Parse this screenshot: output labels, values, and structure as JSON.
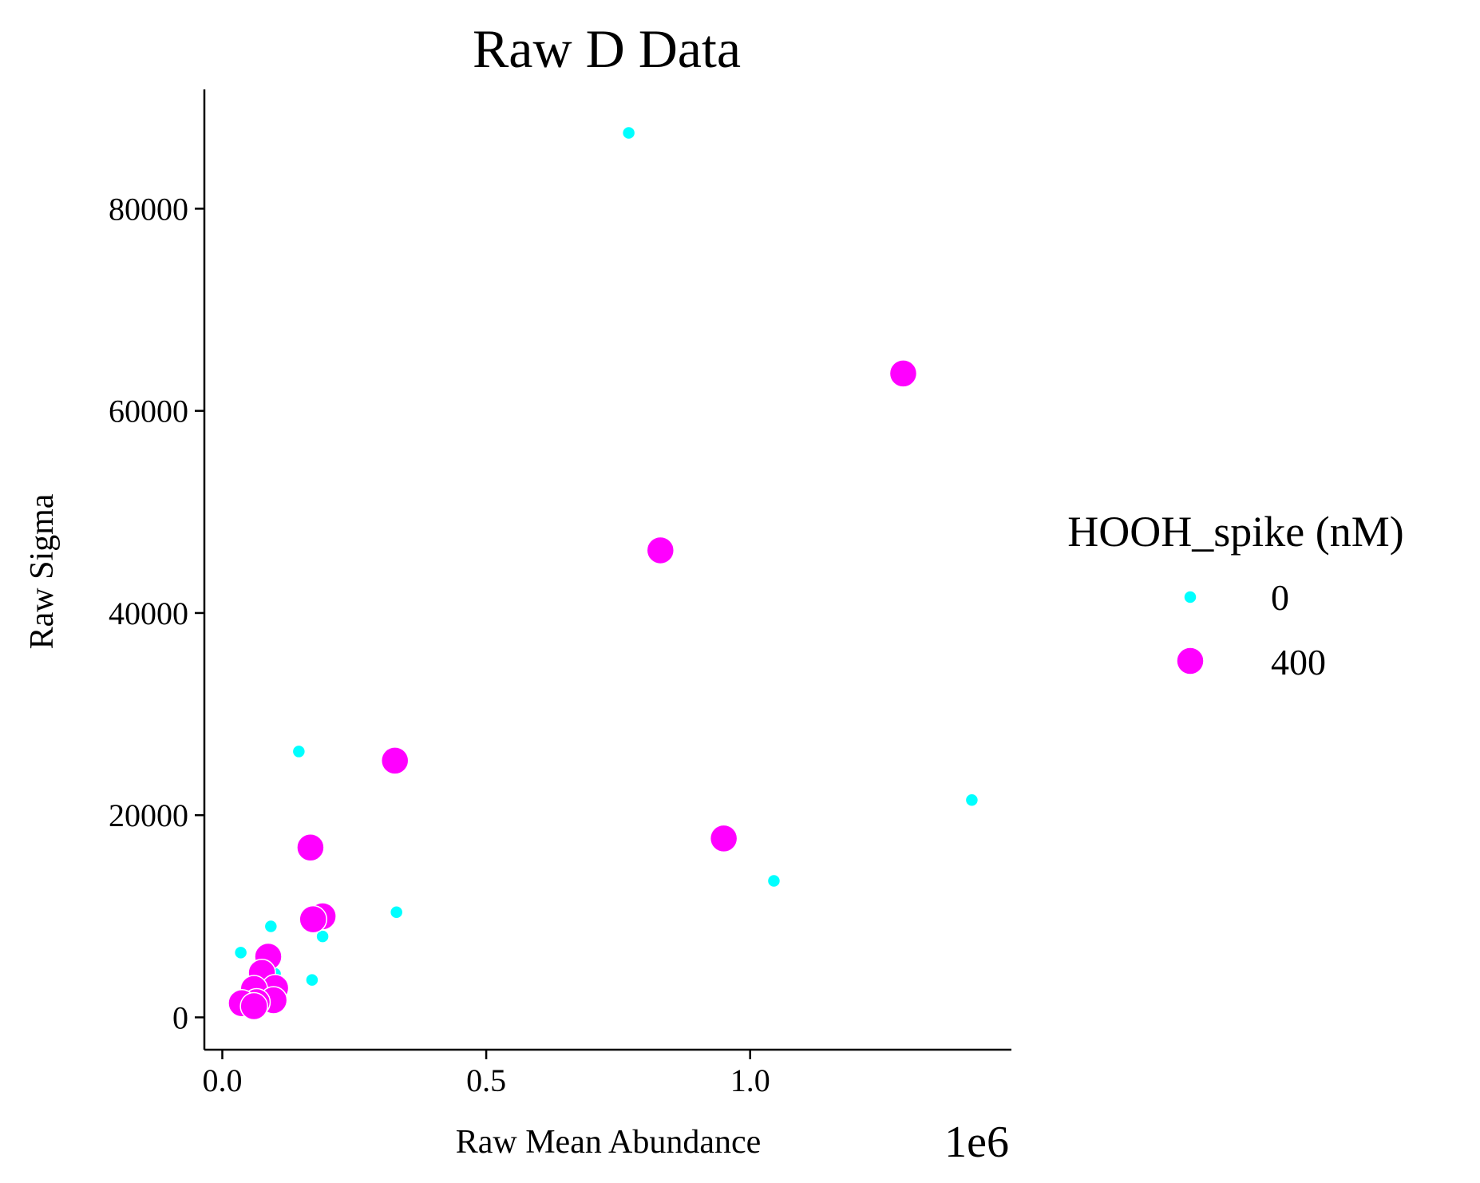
{
  "chart_data": {
    "type": "scatter",
    "title": "Raw D Data",
    "xlabel": "Raw Mean Abundance",
    "ylabel": "Raw Sigma",
    "x_offset_label": "1e6",
    "xlim": [
      -0.034,
      1.495
    ],
    "ylim": [
      -3200,
      91800
    ],
    "x_ticks": [
      0.0,
      0.5,
      1.0
    ],
    "x_tick_labels": [
      "0.0",
      "0.5",
      "1.0"
    ],
    "y_ticks": [
      0,
      20000,
      40000,
      60000,
      80000
    ],
    "y_tick_labels": [
      "0",
      "20000",
      "40000",
      "60000",
      "80000"
    ],
    "grid": false,
    "legend": {
      "title": "HOOH_spike (nM)",
      "placement": "right"
    },
    "series": [
      {
        "name": "0",
        "color": "#00ffff",
        "marker": "small-circle",
        "points": [
          {
            "x": 0.77,
            "y": 87500
          },
          {
            "x": 1.42,
            "y": 21500
          },
          {
            "x": 1.045,
            "y": 13500
          },
          {
            "x": 0.33,
            "y": 10400
          },
          {
            "x": 0.145,
            "y": 26300
          },
          {
            "x": 0.092,
            "y": 9000
          },
          {
            "x": 0.19,
            "y": 8000
          },
          {
            "x": 0.035,
            "y": 6400
          },
          {
            "x": 0.17,
            "y": 3700
          },
          {
            "x": 0.1,
            "y": 4300
          }
        ]
      },
      {
        "name": "400",
        "color": "#ff00ff",
        "marker": "large-circle",
        "points": [
          {
            "x": 1.29,
            "y": 63700
          },
          {
            "x": 0.83,
            "y": 46200
          },
          {
            "x": 0.327,
            "y": 25400
          },
          {
            "x": 0.95,
            "y": 17700
          },
          {
            "x": 0.167,
            "y": 16800
          },
          {
            "x": 0.19,
            "y": 10000
          },
          {
            "x": 0.172,
            "y": 9700
          },
          {
            "x": 0.087,
            "y": 6000
          },
          {
            "x": 0.075,
            "y": 4400
          },
          {
            "x": 0.1,
            "y": 2900
          },
          {
            "x": 0.06,
            "y": 2800
          },
          {
            "x": 0.097,
            "y": 1700
          },
          {
            "x": 0.065,
            "y": 1500
          },
          {
            "x": 0.037,
            "y": 1400
          },
          {
            "x": 0.06,
            "y": 1100
          }
        ]
      }
    ]
  }
}
